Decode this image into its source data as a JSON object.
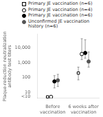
{
  "chart_data": {
    "type": "scatter",
    "ylabel": "Plaque-reduction neutralization\nantibody test titers",
    "categories": [
      "Before\nvaccination",
      "6 weeks after\nvaccination"
    ],
    "log": "y",
    "ylim": [
      4,
      80000
    ],
    "yticks": [
      {
        "value": 5,
        "label": "<10"
      },
      10,
      100,
      {
        "value": 1000,
        "label": "1,000"
      },
      {
        "value": 10000,
        "label": "10,000"
      }
    ],
    "grid": false,
    "legend": "upper left",
    "series": [
      {
        "name": "Primary JE vaccination (n=6)",
        "marker": "open_square",
        "color": "black",
        "values": [
          5,
          200
        ],
        "err_low": [
          0,
          130
        ],
        "err_high": [
          0,
          300
        ]
      },
      {
        "name": "Primary JE vaccination (n=4)",
        "marker": "open_circle",
        "color": "black",
        "values": [
          5,
          3800
        ],
        "err_low": [
          0,
          2200
        ],
        "err_high": [
          0,
          37000
        ]
      },
      {
        "name": "Primary JE vaccination (n=6)",
        "marker": "circle",
        "color": "black",
        "values": [
          55,
          4500
        ],
        "err_low": [
          35,
          2500
        ],
        "err_high": [
          80,
          30000
        ]
      },
      {
        "name": "Unconfirmed JE vaccination\nhistory (n=6)",
        "marker": "circle",
        "color": "#555555",
        "values": [
          65,
          1200
        ],
        "err_low": [
          40,
          700
        ],
        "err_high": [
          100,
          4000
        ]
      }
    ]
  }
}
